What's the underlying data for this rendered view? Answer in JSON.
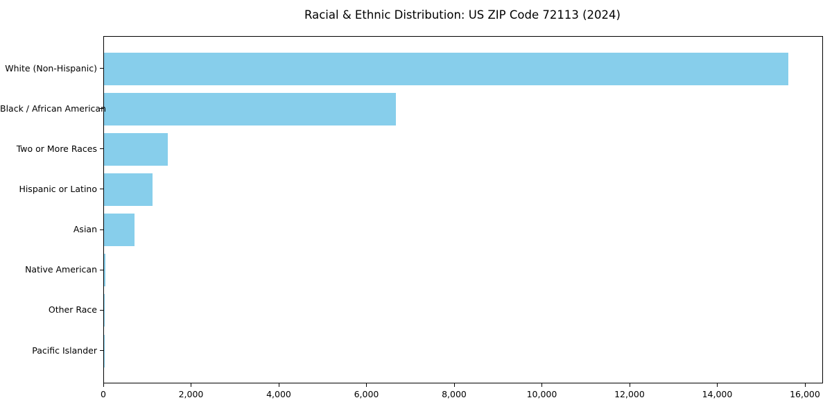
{
  "title": "Racial & Ethnic Distribution: US ZIP Code 72113 (2024)",
  "chart_data": {
    "type": "bar",
    "orientation": "horizontal",
    "title": "Racial & Ethnic Distribution: US ZIP Code 72113 (2024)",
    "xlabel": "",
    "ylabel": "",
    "categories": [
      "White (Non-Hispanic)",
      "Black / African American",
      "Two or More Races",
      "Hispanic or Latino",
      "Asian",
      "Native American",
      "Other Race",
      "Pacific Islander"
    ],
    "values": [
      15600,
      6650,
      1450,
      1100,
      690,
      25,
      10,
      5
    ],
    "xlim": [
      0,
      16380
    ],
    "xticks": [
      0,
      2000,
      4000,
      6000,
      8000,
      10000,
      12000,
      14000,
      16000
    ],
    "xtick_labels": [
      "0",
      "2,000",
      "4,000",
      "6,000",
      "8,000",
      "10,000",
      "12,000",
      "14,000",
      "16,000"
    ],
    "grid": false,
    "legend": null,
    "bar_color": "#87CEEB"
  },
  "colors": {
    "bar": "#87CEEB",
    "axis": "#000000",
    "text": "#000000",
    "background": "#ffffff"
  }
}
